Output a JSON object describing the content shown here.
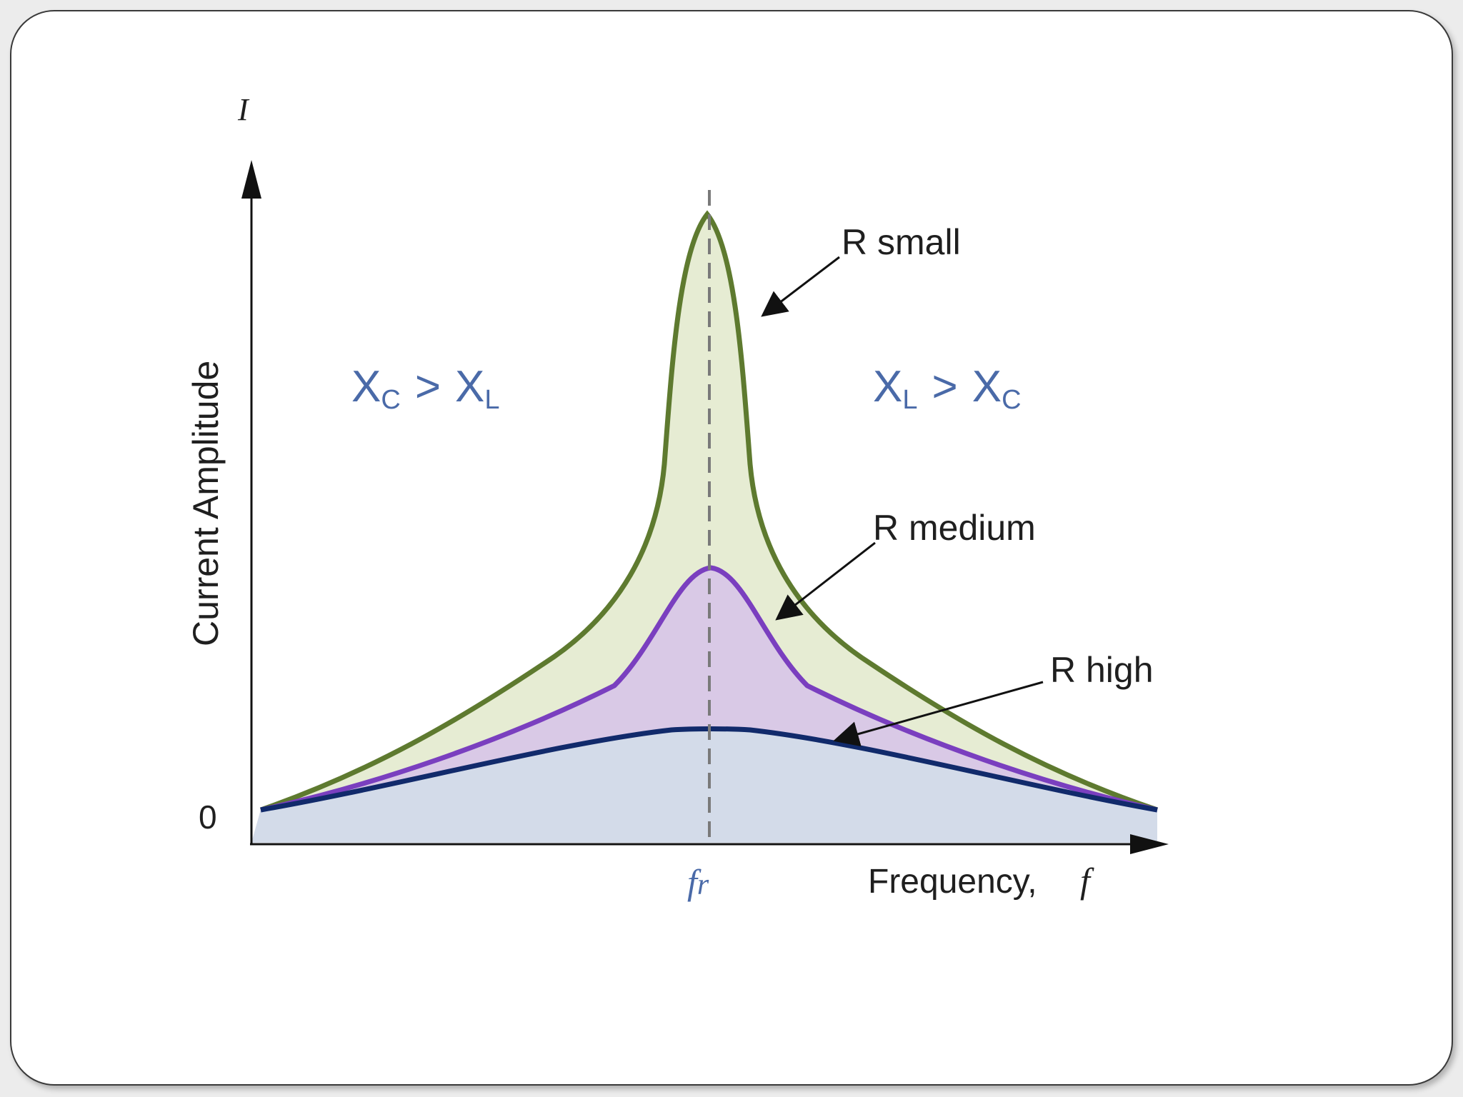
{
  "diagram": {
    "y_axis_symbol": "I",
    "y_axis_label": "Current Amplitude",
    "zero_label": "0",
    "x_axis_label": "Frequency,",
    "x_axis_symbol": "f",
    "resonance_label_main": "f",
    "resonance_label_sub": "r",
    "region_left": {
      "x1": "X",
      "x1_sub": "C",
      "op": ">",
      "x2": "X",
      "x2_sub": "L"
    },
    "region_right": {
      "x1": "X",
      "x1_sub": "L",
      "op": ">",
      "x2": "X",
      "x2_sub": "C"
    },
    "curves": [
      {
        "name": "R small",
        "stroke": "#5e7a2f",
        "fill": "#e6ecd3"
      },
      {
        "name": "R medium",
        "stroke": "#7a3fbf",
        "fill": "#d9c9e6"
      },
      {
        "name": "R high",
        "stroke": "#112a6b",
        "fill": "#d3dbe9"
      }
    ],
    "colors": {
      "axis": "#111111",
      "dashed_line": "#7a7a7a",
      "region_text": "#4a6aa8"
    }
  }
}
